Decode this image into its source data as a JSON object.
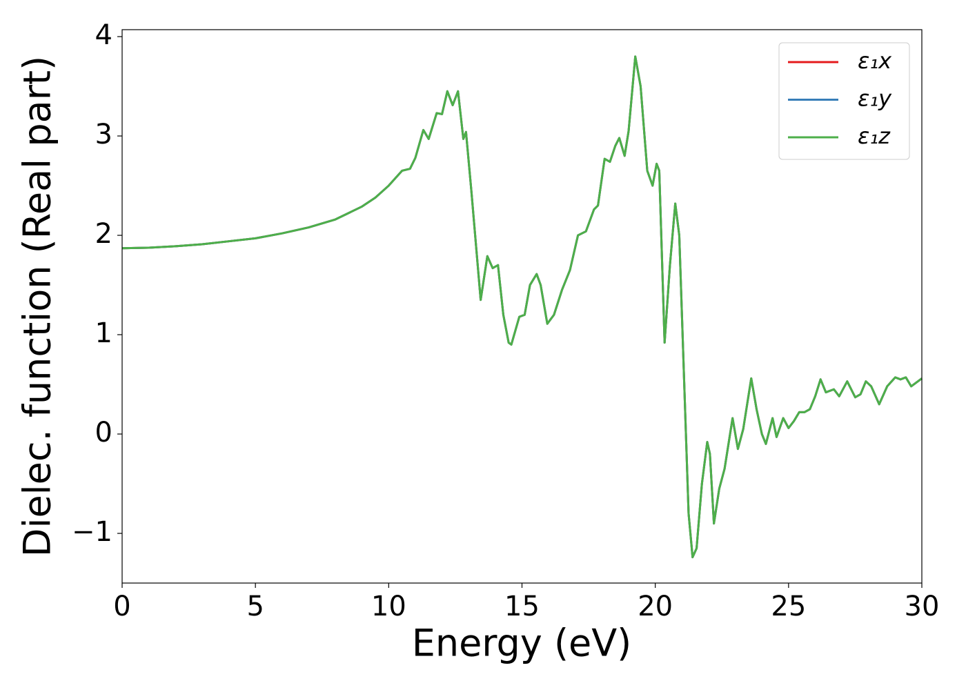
{
  "chart_data": {
    "type": "line",
    "xlabel": "Energy (eV)",
    "ylabel": "Dielec. function (Real part)",
    "x": [
      0,
      1,
      2,
      3,
      4,
      5,
      6,
      7,
      8,
      9,
      9.5,
      10,
      10.5,
      10.8,
      11,
      11.3,
      11.5,
      11.8,
      12.0,
      12.2,
      12.4,
      12.6,
      12.8,
      12.9,
      13.1,
      13.45,
      13.7,
      13.9,
      14.1,
      14.3,
      14.5,
      14.6,
      14.9,
      15.1,
      15.3,
      15.55,
      15.7,
      15.95,
      16.2,
      16.5,
      16.8,
      17.1,
      17.4,
      17.7,
      17.85,
      18.1,
      18.3,
      18.5,
      18.65,
      18.85,
      19.0,
      19.25,
      19.45,
      19.7,
      19.9,
      20.05,
      20.15,
      20.35,
      20.55,
      20.75,
      20.9,
      21.1,
      21.25,
      21.4,
      21.55,
      21.75,
      21.95,
      22.05,
      22.2,
      22.4,
      22.6,
      22.9,
      23.1,
      23.3,
      23.6,
      23.8,
      24.0,
      24.15,
      24.4,
      24.55,
      24.8,
      25.0,
      25.2,
      25.4,
      25.6,
      25.8,
      26.0,
      26.2,
      26.4,
      26.7,
      26.9,
      27.2,
      27.5,
      27.7,
      27.9,
      28.1,
      28.4,
      28.7,
      29.0,
      29.2,
      29.4,
      29.6,
      30.0
    ],
    "series": [
      {
        "name": "ε₁x",
        "color": "#e41a1c",
        "values": [
          1.87,
          1.875,
          1.89,
          1.91,
          1.94,
          1.97,
          2.02,
          2.08,
          2.16,
          2.29,
          2.38,
          2.5,
          2.65,
          2.67,
          2.78,
          3.06,
          2.97,
          3.23,
          3.22,
          3.45,
          3.31,
          3.45,
          2.97,
          3.04,
          2.45,
          1.35,
          1.79,
          1.67,
          1.7,
          1.2,
          0.92,
          0.9,
          1.18,
          1.2,
          1.5,
          1.61,
          1.5,
          1.11,
          1.2,
          1.45,
          1.65,
          2.0,
          2.04,
          2.26,
          2.3,
          2.77,
          2.74,
          2.9,
          2.98,
          2.8,
          3.05,
          3.8,
          3.5,
          2.65,
          2.5,
          2.72,
          2.65,
          0.92,
          1.7,
          2.32,
          2.0,
          0.4,
          -0.8,
          -1.24,
          -1.15,
          -0.5,
          -0.08,
          -0.2,
          -0.9,
          -0.55,
          -0.35,
          0.16,
          -0.15,
          0.05,
          0.56,
          0.25,
          0.0,
          -0.1,
          0.16,
          -0.03,
          0.16,
          0.06,
          0.13,
          0.22,
          0.22,
          0.25,
          0.38,
          0.55,
          0.42,
          0.45,
          0.38,
          0.53,
          0.37,
          0.4,
          0.53,
          0.48,
          0.3,
          0.48,
          0.57,
          0.55,
          0.57,
          0.48,
          0.56
        ]
      },
      {
        "name": "ε₁y",
        "color": "#377eb8",
        "values": [
          1.87,
          1.875,
          1.89,
          1.91,
          1.94,
          1.97,
          2.02,
          2.08,
          2.16,
          2.29,
          2.38,
          2.5,
          2.65,
          2.67,
          2.78,
          3.06,
          2.97,
          3.23,
          3.22,
          3.45,
          3.31,
          3.45,
          2.97,
          3.04,
          2.45,
          1.35,
          1.79,
          1.67,
          1.7,
          1.2,
          0.92,
          0.9,
          1.18,
          1.2,
          1.5,
          1.61,
          1.5,
          1.11,
          1.2,
          1.45,
          1.65,
          2.0,
          2.04,
          2.26,
          2.3,
          2.77,
          2.74,
          2.9,
          2.98,
          2.8,
          3.05,
          3.8,
          3.5,
          2.65,
          2.5,
          2.72,
          2.65,
          0.92,
          1.7,
          2.32,
          2.0,
          0.4,
          -0.8,
          -1.24,
          -1.15,
          -0.5,
          -0.08,
          -0.2,
          -0.9,
          -0.55,
          -0.35,
          0.16,
          -0.15,
          0.05,
          0.56,
          0.25,
          0.0,
          -0.1,
          0.16,
          -0.03,
          0.16,
          0.06,
          0.13,
          0.22,
          0.22,
          0.25,
          0.38,
          0.55,
          0.42,
          0.45,
          0.38,
          0.53,
          0.37,
          0.4,
          0.53,
          0.48,
          0.3,
          0.48,
          0.57,
          0.55,
          0.57,
          0.48,
          0.56
        ]
      },
      {
        "name": "ε₁z",
        "color": "#4daf4a",
        "values": [
          1.87,
          1.875,
          1.89,
          1.91,
          1.94,
          1.97,
          2.02,
          2.08,
          2.16,
          2.29,
          2.38,
          2.5,
          2.65,
          2.67,
          2.78,
          3.06,
          2.97,
          3.23,
          3.22,
          3.45,
          3.31,
          3.45,
          2.97,
          3.04,
          2.45,
          1.35,
          1.79,
          1.67,
          1.7,
          1.2,
          0.92,
          0.9,
          1.18,
          1.2,
          1.5,
          1.61,
          1.5,
          1.11,
          1.2,
          1.45,
          1.65,
          2.0,
          2.04,
          2.26,
          2.3,
          2.77,
          2.74,
          2.9,
          2.98,
          2.8,
          3.05,
          3.8,
          3.5,
          2.65,
          2.5,
          2.72,
          2.65,
          0.92,
          1.7,
          2.32,
          2.0,
          0.4,
          -0.8,
          -1.24,
          -1.15,
          -0.5,
          -0.08,
          -0.2,
          -0.9,
          -0.55,
          -0.35,
          0.16,
          -0.15,
          0.05,
          0.56,
          0.25,
          0.0,
          -0.1,
          0.16,
          -0.03,
          0.16,
          0.06,
          0.13,
          0.22,
          0.22,
          0.25,
          0.38,
          0.55,
          0.42,
          0.45,
          0.38,
          0.53,
          0.37,
          0.4,
          0.53,
          0.48,
          0.3,
          0.48,
          0.57,
          0.55,
          0.57,
          0.48,
          0.56
        ]
      }
    ],
    "xlim": [
      0,
      30
    ],
    "xticks": [
      0,
      5,
      10,
      15,
      20,
      25,
      30
    ],
    "ylim": [
      -1.5,
      4.07
    ],
    "yticks": [
      {
        "value": -1,
        "label": "−1"
      },
      0,
      1,
      2,
      3,
      4
    ],
    "legend": "upper right"
  }
}
